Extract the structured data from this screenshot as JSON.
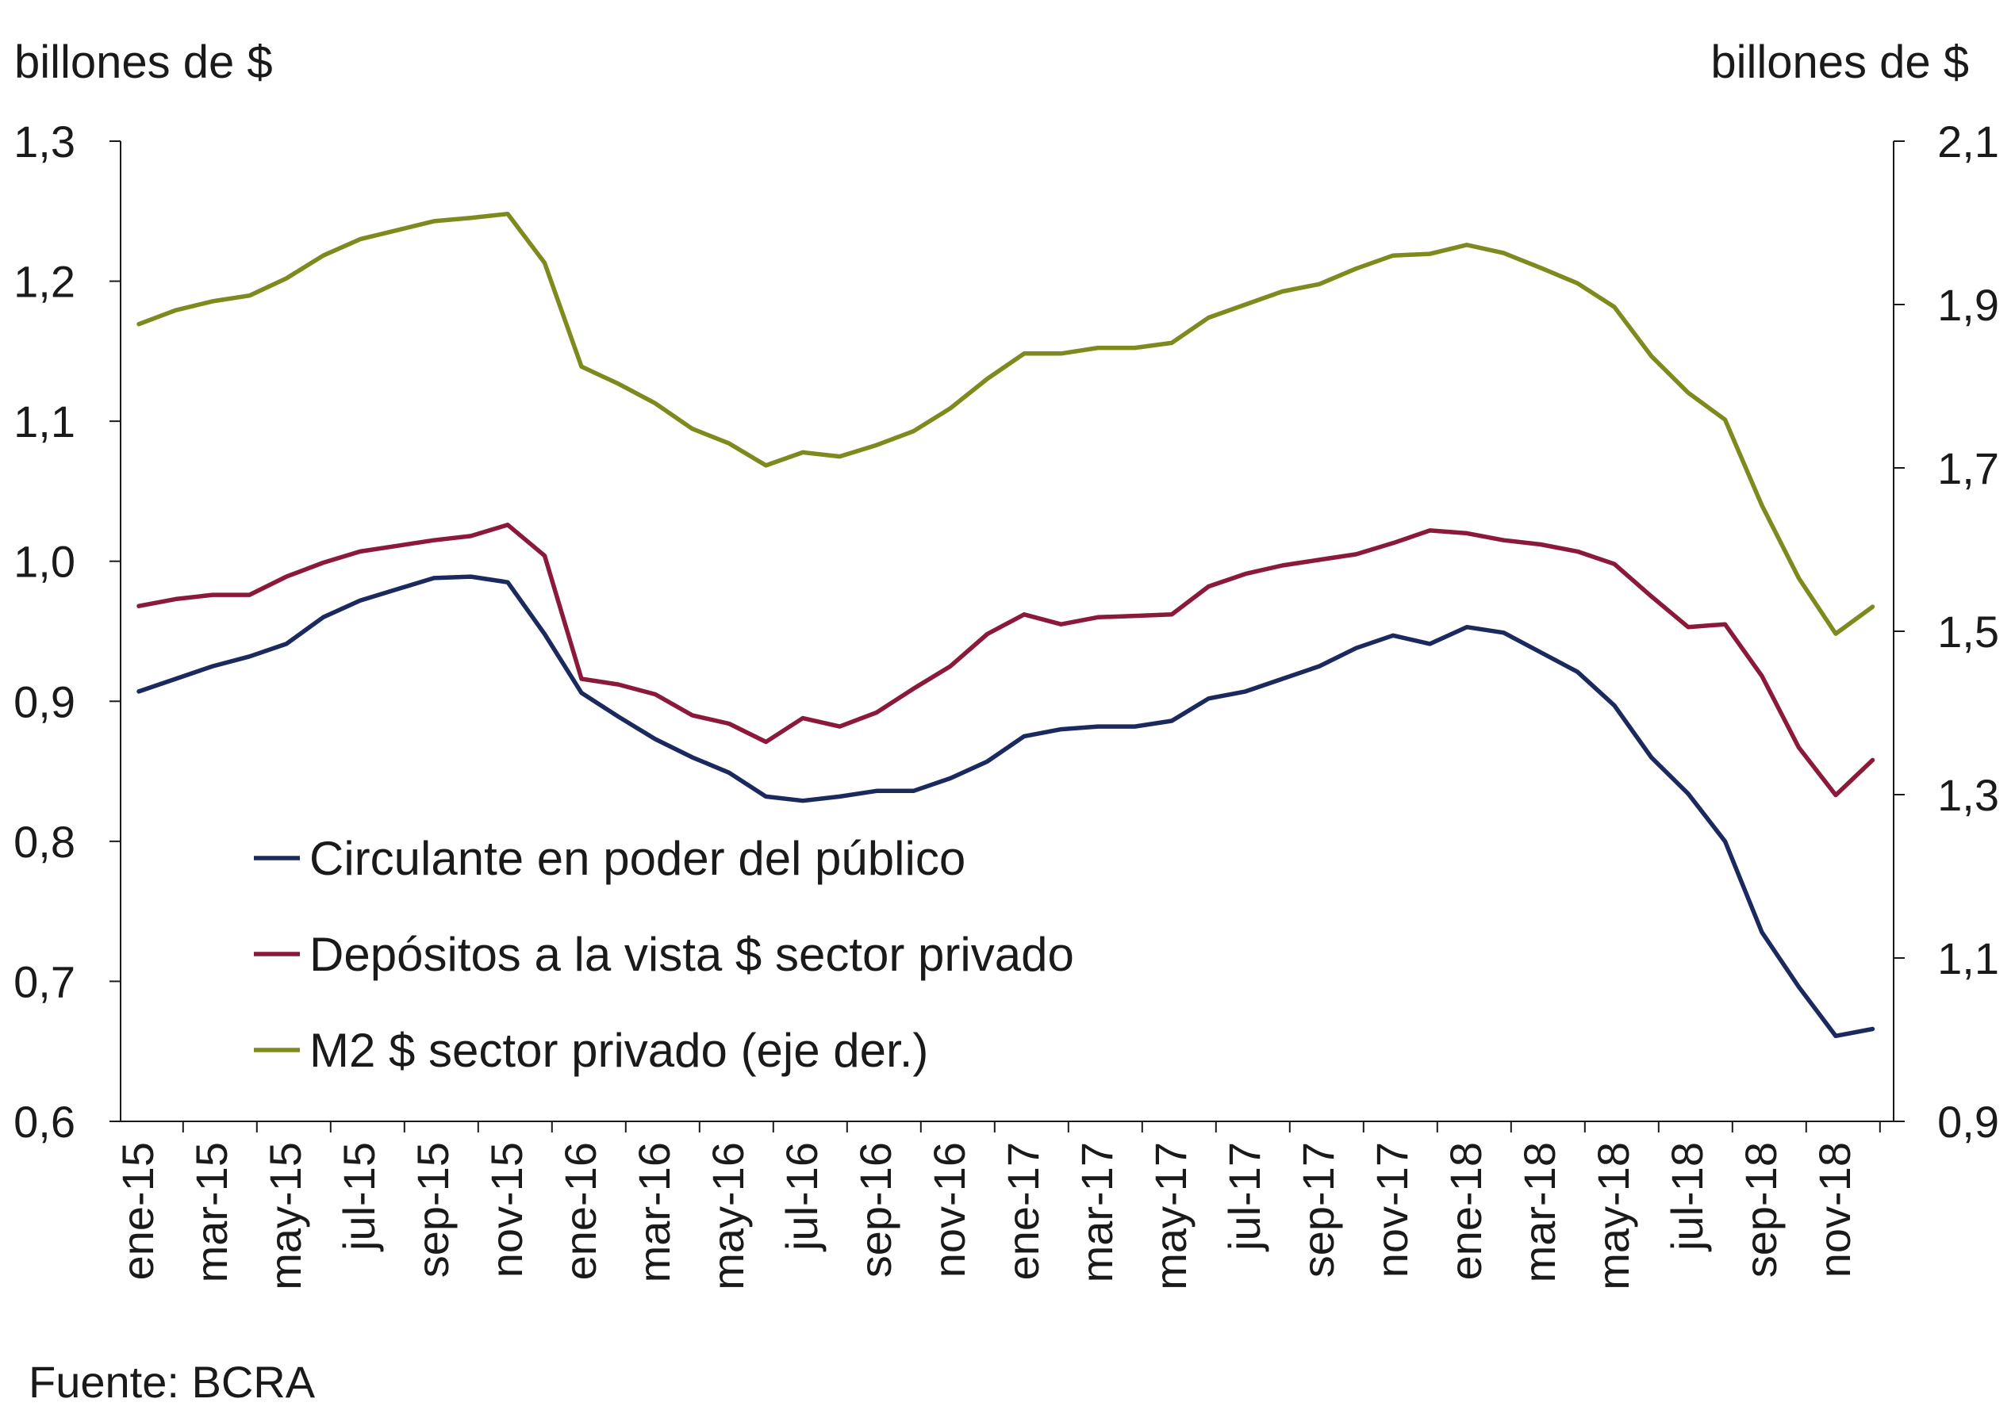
{
  "chart_data": {
    "type": "line",
    "left_axis_label": "billones de $",
    "right_axis_label": "billones de $",
    "source": "Fuente: BCRA",
    "y_left": {
      "ylim": [
        0.6,
        1.3
      ],
      "ticks": [
        "0,6",
        "0,7",
        "0,8",
        "0,9",
        "1,0",
        "1,1",
        "1,2",
        "1,3"
      ]
    },
    "y_right": {
      "ylim": [
        0.9,
        2.1
      ],
      "ticks": [
        "0,9",
        "1,1",
        "1,3",
        "1,5",
        "1,7",
        "1,9",
        "2,1"
      ]
    },
    "x_tick_labels": [
      "ene-15",
      "mar-15",
      "may-15",
      "jul-15",
      "sep-15",
      "nov-15",
      "ene-16",
      "mar-16",
      "may-16",
      "jul-16",
      "sep-16",
      "nov-16",
      "ene-17",
      "mar-17",
      "may-17",
      "jul-17",
      "sep-17",
      "nov-17",
      "ene-18",
      "mar-18",
      "may-18",
      "jul-18",
      "sep-18",
      "nov-18"
    ],
    "x": [
      "ene-15",
      "feb-15",
      "mar-15",
      "abr-15",
      "may-15",
      "jun-15",
      "jul-15",
      "ago-15",
      "sep-15",
      "oct-15",
      "nov-15",
      "dic-15",
      "ene-16",
      "feb-16",
      "mar-16",
      "abr-16",
      "may-16",
      "jun-16",
      "jul-16",
      "ago-16",
      "sep-16",
      "oct-16",
      "nov-16",
      "dic-16",
      "ene-17",
      "feb-17",
      "mar-17",
      "abr-17",
      "may-17",
      "jun-17",
      "jul-17",
      "ago-17",
      "sep-17",
      "oct-17",
      "nov-17",
      "dic-17",
      "ene-18",
      "feb-18",
      "mar-18",
      "abr-18",
      "may-18",
      "jun-18",
      "jul-18",
      "ago-18",
      "sep-18",
      "oct-18",
      "nov-18",
      "dic-18"
    ],
    "legend_position": "lower-left",
    "grid": false,
    "series": [
      {
        "name": "Circulante en poder del público",
        "axis": "left",
        "color": "#1b2a5e",
        "values": [
          0.907,
          0.916,
          0.925,
          0.932,
          0.941,
          0.96,
          0.972,
          0.98,
          0.988,
          0.989,
          0.985,
          0.948,
          0.906,
          0.889,
          0.873,
          0.86,
          0.849,
          0.832,
          0.829,
          0.832,
          0.836,
          0.836,
          0.845,
          0.857,
          0.875,
          0.88,
          0.882,
          0.882,
          0.886,
          0.902,
          0.907,
          0.916,
          0.925,
          0.938,
          0.947,
          0.941,
          0.953,
          0.949,
          0.935,
          0.921,
          0.897,
          0.86,
          0.834,
          0.8,
          0.735,
          0.696,
          0.661,
          0.666
        ]
      },
      {
        "name": "Depósitos a la vista $ sector privado",
        "axis": "left",
        "color": "#8b1a3a",
        "values": [
          0.968,
          0.973,
          0.976,
          0.976,
          0.989,
          0.999,
          1.007,
          1.011,
          1.015,
          1.018,
          1.026,
          1.004,
          0.916,
          0.912,
          0.905,
          0.89,
          0.884,
          0.871,
          0.888,
          0.882,
          0.892,
          0.909,
          0.925,
          0.948,
          0.962,
          0.955,
          0.96,
          0.961,
          0.962,
          0.982,
          0.991,
          0.997,
          1.001,
          1.005,
          1.013,
          1.022,
          1.02,
          1.015,
          1.012,
          1.007,
          0.998,
          0.975,
          0.953,
          0.955,
          0.918,
          0.867,
          0.833,
          0.858
        ]
      },
      {
        "name": "M2 $ sector privado (eje der.)",
        "axis": "right",
        "color": "#7f8a1e",
        "values": [
          1.876,
          1.893,
          1.904,
          1.911,
          1.932,
          1.96,
          1.98,
          1.991,
          2.002,
          2.006,
          2.011,
          1.951,
          1.824,
          1.803,
          1.779,
          1.748,
          1.73,
          1.703,
          1.719,
          1.714,
          1.728,
          1.745,
          1.773,
          1.809,
          1.84,
          1.84,
          1.847,
          1.847,
          1.853,
          1.884,
          1.9,
          1.916,
          1.925,
          1.944,
          1.96,
          1.962,
          1.973,
          1.963,
          1.945,
          1.926,
          1.897,
          1.837,
          1.792,
          1.759,
          1.654,
          1.565,
          1.497,
          1.53
        ]
      }
    ]
  }
}
